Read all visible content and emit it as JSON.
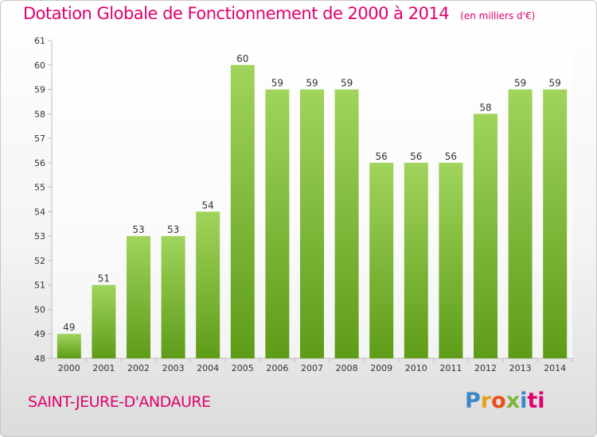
{
  "header": {
    "title": "Dotation Globale de Fonctionnement de 2000 à 2014",
    "unit": "(en milliers d'€)"
  },
  "footer": {
    "commune": "SAINT-JEURE-D'ANDAURE",
    "logo": [
      "P",
      "r",
      "o",
      "x",
      "i",
      "ti"
    ]
  },
  "colors": {
    "title": "#e0006e",
    "bar_top": "#a0d45c",
    "bar_bottom": "#5e9c18",
    "axis": "#bdbdbd",
    "grid": "#e2e2e2",
    "text": "#333333"
  },
  "chart_data": {
    "type": "bar",
    "categories": [
      "2000",
      "2001",
      "2002",
      "2003",
      "2004",
      "2005",
      "2006",
      "2007",
      "2008",
      "2009",
      "2010",
      "2011",
      "2012",
      "2013",
      "2014"
    ],
    "values": [
      49,
      51,
      53,
      53,
      54,
      60,
      59,
      59,
      59,
      56,
      56,
      56,
      58,
      59,
      59
    ],
    "ylim": [
      48,
      61
    ],
    "yticks": [
      48,
      49,
      50,
      51,
      52,
      53,
      54,
      55,
      56,
      57,
      58,
      59,
      60,
      61
    ],
    "data_labels": true,
    "grid": false
  }
}
